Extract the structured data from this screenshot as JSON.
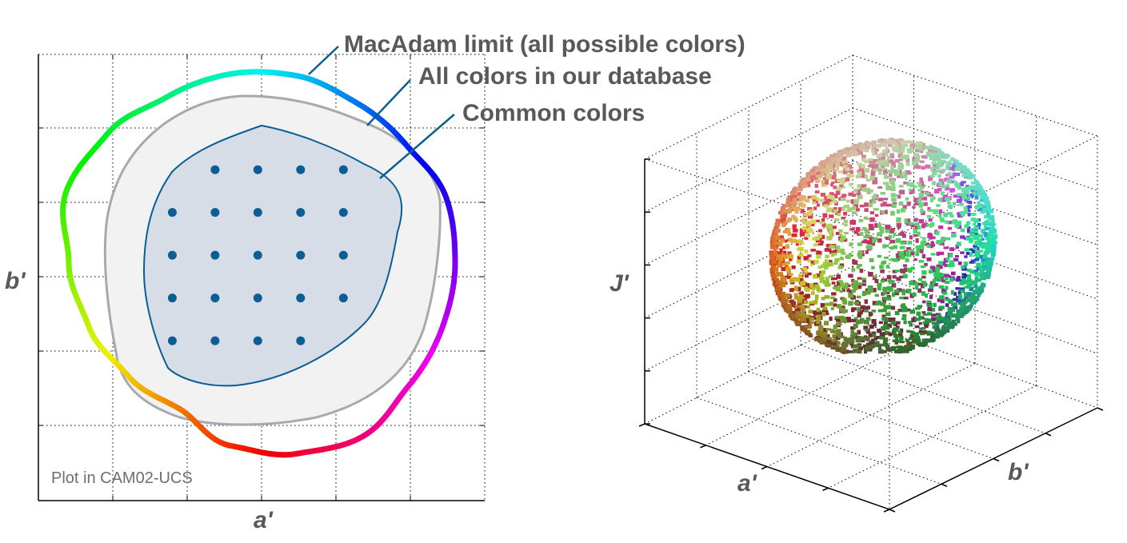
{
  "chart_data": [
    {
      "type": "scatter",
      "panel": "left",
      "xlabel": "a'",
      "ylabel": "b'",
      "note": "Plot in CAM02-UCS",
      "grid": true,
      "xlim": [
        -60,
        60
      ],
      "ylim": [
        -60,
        60
      ],
      "annotations": [
        {
          "label": "MacAdam limit (all possible colors)"
        },
        {
          "label": "All colors in our database"
        },
        {
          "label": "Common colors"
        }
      ],
      "sample_points": {
        "name": "Common colors",
        "color": "#0a5e94",
        "points": [
          [
            -12.5,
            29
          ],
          [
            -1,
            29
          ],
          [
            10.5,
            29
          ],
          [
            22,
            29
          ],
          [
            -24,
            17.5
          ],
          [
            -12.5,
            17.5
          ],
          [
            -1,
            17.5
          ],
          [
            10.5,
            17.5
          ],
          [
            22,
            17.5
          ],
          [
            -24,
            6
          ],
          [
            -12.5,
            6
          ],
          [
            -1,
            6
          ],
          [
            10.5,
            6
          ],
          [
            22,
            6
          ],
          [
            -24,
            -5.5
          ],
          [
            -12.5,
            -5.5
          ],
          [
            -1,
            -5.5
          ],
          [
            10.5,
            -5.5
          ],
          [
            22,
            -5.5
          ],
          [
            -24,
            -17
          ],
          [
            -12.5,
            -17
          ],
          [
            -1,
            -17
          ],
          [
            10.5,
            -17
          ]
        ]
      }
    },
    {
      "type": "scatter",
      "panel": "right",
      "xlabel": "a'",
      "ylabel": "b'",
      "zlabel": "J'",
      "grid": true
    }
  ],
  "colors": {
    "text": "#58595b",
    "note": "#6d6e71",
    "grid": "#000000",
    "database_fill": "#f2f2f2",
    "database_stroke": "#a7a9ac",
    "common_fill": "#d6dde6",
    "common_stroke": "#0a5e94",
    "leader": "#0a5e94"
  }
}
